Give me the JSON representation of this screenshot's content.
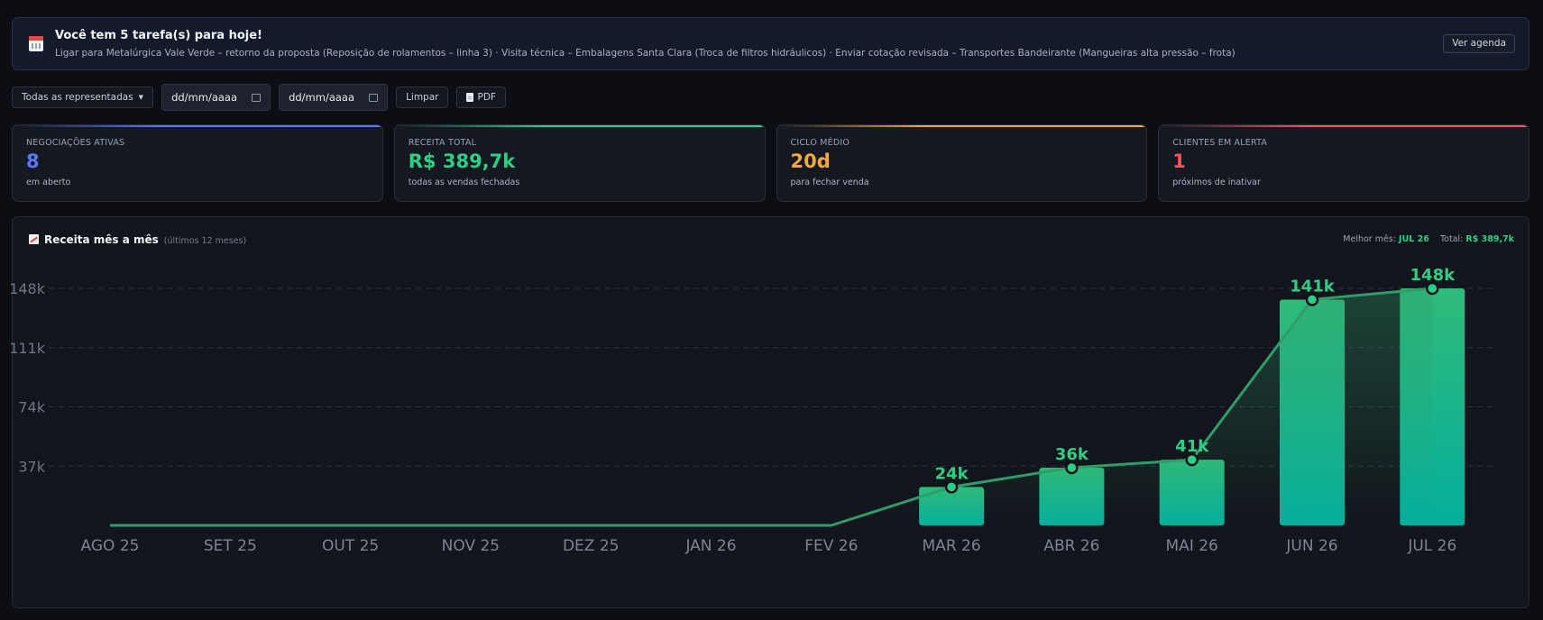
{
  "alert": {
    "title": "Você tem 5 tarefa(s) para hoje!",
    "text": "Ligar para Metalúrgica Vale Verde – retorno da proposta (Reposição de rolamentos – linha 3) · Visita técnica – Embalagens Santa Clara (Troca de filtros hidráulicos) · Enviar cotação revisada – Transportes Bandeirante (Mangueiras alta pressão – frota)",
    "button": "Ver agenda",
    "icon": "calendar-icon"
  },
  "filters": {
    "representative": "Todas as representadas",
    "date_from_placeholder": "dd/mm/aaaa",
    "date_to_placeholder": "dd/mm/aaaa",
    "clear": "Limpar",
    "pdf": "PDF"
  },
  "cards": [
    {
      "label": "NEGOCIAÇÕES ATIVAS",
      "value": "8",
      "sub": "em aberto",
      "color": "#5a78ff"
    },
    {
      "label": "RECEITA TOTAL",
      "value": "R$ 389,7k",
      "sub": "todas as vendas fechadas",
      "color": "#2fce87"
    },
    {
      "label": "CICLO MÉDIO",
      "value": "20d",
      "sub": "para fechar venda",
      "color": "#f5a93b"
    },
    {
      "label": "CLIENTES EM ALERTA",
      "value": "1",
      "sub": "próximos de inativar",
      "color": "#f2555e"
    }
  ],
  "panel": {
    "title": "Receita mês a mês",
    "subtitle": "(últimos 12 meses)",
    "best_month_label": "Melhor mês:",
    "best_month": "JUL 26",
    "total_label": "Total:",
    "total": "R$ 389,7k"
  },
  "chart_data": {
    "type": "bar",
    "overlay": "line",
    "categories": [
      "AGO 25",
      "SET 25",
      "OUT 25",
      "NOV 25",
      "DEZ 25",
      "JAN 26",
      "FEV 26",
      "MAR 26",
      "ABR 26",
      "MAI 26",
      "JUN 26",
      "JUL 26"
    ],
    "values": [
      0,
      0,
      0,
      0,
      0,
      0,
      0,
      24,
      36,
      41,
      141,
      148
    ],
    "data_labels": [
      "",
      "",
      "",
      "",
      "",
      "",
      "",
      "24k",
      "36k",
      "41k",
      "141k",
      "148k"
    ],
    "unit": "k",
    "yticks": [
      37,
      74,
      111,
      148
    ],
    "ytick_labels": [
      "37k",
      "74k",
      "111k",
      "148k"
    ],
    "ylim": [
      0,
      148
    ],
    "grid": true,
    "colors": {
      "bar_top": "#2fbb7a",
      "bar_bottom": "#05ae9c",
      "line": "#2f9c6a",
      "label": "#2fce87"
    }
  }
}
